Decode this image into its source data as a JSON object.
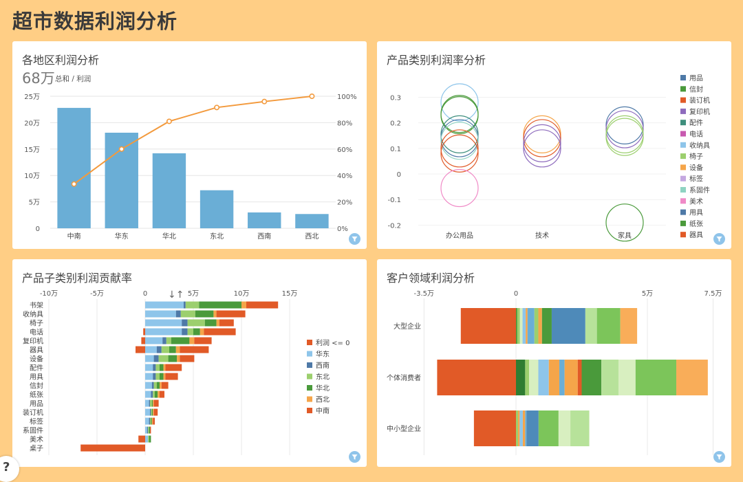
{
  "page_title": "超市数据利润分析",
  "colors": {
    "background": "#FFCE85",
    "bar_blue": "#6aaed6",
    "line_orange": "#f39a3d"
  },
  "icons": {
    "filter": "funnel-icon",
    "sort": "sort-icon",
    "help": "help-icon"
  },
  "panels": {
    "region": {
      "title": "各地区利润分析",
      "big_number": "68万",
      "big_number_sub": "总和 / 利润"
    },
    "category": {
      "title": "产品类别利润率分析"
    },
    "subcategory": {
      "title": "产品子类别利润贡献率",
      "sort_symbol": "↓↑"
    },
    "segment": {
      "title": "客户领域利润分析"
    }
  },
  "help_label": "?",
  "chart_data": [
    {
      "id": "region",
      "type": "bar",
      "categories": [
        "中南",
        "华东",
        "华北",
        "东北",
        "西南",
        "西北"
      ],
      "values": [
        228000,
        181000,
        142000,
        72000,
        30000,
        27000
      ],
      "cumulative_percent": [
        33.5,
        60.0,
        81.0,
        91.5,
        96.0,
        100.0
      ],
      "ylim": [
        0,
        250000
      ],
      "y_ticks": [
        "0",
        "5万",
        "10万",
        "15万",
        "20万",
        "25万"
      ],
      "y2_ticks": [
        "0%",
        "20%",
        "40%",
        "60%",
        "80%",
        "100%"
      ],
      "grid": true
    },
    {
      "id": "category",
      "type": "scatter",
      "categories": [
        "办公用品",
        "技术",
        "家具"
      ],
      "ylim": [
        -0.25,
        0.32
      ],
      "y_ticks": [
        "0.3",
        "0.2",
        "0.1",
        "0",
        "-0.1",
        "-0.2"
      ],
      "legend_position": "right",
      "legend": [
        {
          "name": "用品",
          "color": "#4e79a7"
        },
        {
          "name": "信封",
          "color": "#4a9a3b"
        },
        {
          "name": "装订机",
          "color": "#e15a27"
        },
        {
          "name": "复印机",
          "color": "#8e6bbd"
        },
        {
          "name": "配件",
          "color": "#3f8f7d"
        },
        {
          "name": "电话",
          "color": "#c85ab0"
        },
        {
          "name": "收纳具",
          "color": "#8ec5ea"
        },
        {
          "name": "椅子",
          "color": "#9ccf6e"
        },
        {
          "name": "设备",
          "color": "#f5a54a"
        },
        {
          "name": "标签",
          "color": "#c4a8e0"
        },
        {
          "name": "系固件",
          "color": "#8fd3c2"
        },
        {
          "name": "美术",
          "color": "#f08ac7"
        },
        {
          "name": "用具",
          "color": "#4e79a7"
        },
        {
          "name": "纸张",
          "color": "#4a9a3b"
        },
        {
          "name": "器具",
          "color": "#e15a27"
        }
      ],
      "points": [
        {
          "category": "办公用品",
          "y": 0.28,
          "color": "#8ec5ea"
        },
        {
          "category": "办公用品",
          "y": 0.235,
          "color": "#4a9a3b"
        },
        {
          "category": "办公用品",
          "y": 0.23,
          "color": "#4a9a3b"
        },
        {
          "category": "办公用品",
          "y": 0.155,
          "color": "#3f8f7d"
        },
        {
          "category": "办公用品",
          "y": 0.14,
          "color": "#4e79a7"
        },
        {
          "category": "办公用品",
          "y": 0.13,
          "color": "#8fd3c2"
        },
        {
          "category": "办公用品",
          "y": 0.1,
          "color": "#e15a27"
        },
        {
          "category": "办公用品",
          "y": 0.08,
          "color": "#e15a27"
        },
        {
          "category": "办公用品",
          "y": -0.055,
          "color": "#f08ac7"
        },
        {
          "category": "技术",
          "y": 0.155,
          "color": "#f5a54a"
        },
        {
          "category": "技术",
          "y": 0.14,
          "color": "#e15a27"
        },
        {
          "category": "技术",
          "y": 0.12,
          "color": "#8e6bbd"
        },
        {
          "category": "技术",
          "y": 0.1,
          "color": "#8e6bbd"
        },
        {
          "category": "家具",
          "y": 0.19,
          "color": "#4e79a7"
        },
        {
          "category": "家具",
          "y": 0.175,
          "color": "#8e6bbd"
        },
        {
          "category": "家具",
          "y": 0.155,
          "color": "#9ccf6e"
        },
        {
          "category": "家具",
          "y": 0.145,
          "color": "#9ccf6e"
        },
        {
          "category": "家具",
          "y": -0.19,
          "color": "#4a9a3b"
        }
      ]
    },
    {
      "id": "subcategory",
      "type": "bar",
      "orientation": "horizontal",
      "categories": [
        "书架",
        "收纳具",
        "椅子",
        "电话",
        "复印机",
        "器具",
        "设备",
        "配件",
        "用具",
        "信封",
        "纸张",
        "用品",
        "装订机",
        "标签",
        "系固件",
        "美术",
        "桌子"
      ],
      "xlim": [
        -100000,
        150000
      ],
      "x_ticks": [
        "-10万",
        "-5万",
        "0",
        "5万",
        "10万",
        "15万"
      ],
      "legend_position": "right",
      "series": [
        {
          "name": "利润 <= 0",
          "color": "#e15a27",
          "values": [
            0,
            0,
            0,
            -2000,
            -4000,
            -10000,
            0,
            0,
            0,
            0,
            0,
            0,
            0,
            0,
            0,
            -7000,
            -67000
          ]
        },
        {
          "name": "华东",
          "color": "#8ec5ea",
          "values": [
            40000,
            32000,
            38000,
            38000,
            18000,
            12000,
            9000,
            8000,
            8000,
            7000,
            6000,
            4000,
            5000,
            4000,
            2000,
            3000,
            0
          ]
        },
        {
          "name": "西南",
          "color": "#4e79a7",
          "values": [
            2000,
            5000,
            6000,
            6000,
            4000,
            5000,
            5000,
            3000,
            3000,
            2000,
            2000,
            1000,
            1000,
            1000,
            1000,
            0,
            0
          ]
        },
        {
          "name": "东北",
          "color": "#9ccf6e",
          "values": [
            14000,
            15000,
            18000,
            6000,
            5000,
            8000,
            10000,
            4000,
            4000,
            3000,
            2000,
            2000,
            1000,
            1000,
            1000,
            1000,
            0
          ]
        },
        {
          "name": "华北",
          "color": "#4a9a3b",
          "values": [
            44000,
            19000,
            12000,
            7000,
            19000,
            7000,
            9000,
            4000,
            4000,
            3000,
            3000,
            1000,
            1000,
            1000,
            1000,
            2000,
            0
          ]
        },
        {
          "name": "西北",
          "color": "#f5a54a",
          "values": [
            5000,
            3000,
            3000,
            4000,
            5000,
            4000,
            3000,
            2000,
            2000,
            2000,
            2000,
            1000,
            1000,
            1000,
            0,
            0,
            0
          ]
        },
        {
          "name": "中南",
          "color": "#e15a27",
          "values": [
            33000,
            30000,
            15000,
            33000,
            18000,
            30000,
            15000,
            17000,
            13000,
            7000,
            5000,
            5000,
            4000,
            2000,
            1000,
            0,
            0
          ]
        }
      ]
    },
    {
      "id": "segment",
      "type": "bar",
      "orientation": "horizontal",
      "categories": [
        "大型企业",
        "个体消费者",
        "中小型企业"
      ],
      "xlim": [
        -35000,
        75000
      ],
      "x_ticks": [
        "-3.5万",
        "0",
        "5万",
        "7.5万"
      ],
      "segments": [
        {
          "category": "大型企业",
          "parts": [
            {
              "value": -21000,
              "color": "#e15a27"
            },
            {
              "value": 500,
              "color": "#4a9a3b"
            },
            {
              "value": 1000,
              "color": "#9ccf6e"
            },
            {
              "value": 1000,
              "color": "#d8efc0"
            },
            {
              "value": 1200,
              "color": "#8ec5ea"
            },
            {
              "value": 700,
              "color": "#f5a54a"
            },
            {
              "value": 2600,
              "color": "#6aaed6"
            },
            {
              "value": 1500,
              "color": "#9ccf6e"
            },
            {
              "value": 1400,
              "color": "#f5a54a"
            },
            {
              "value": 3700,
              "color": "#4a9a3b"
            },
            {
              "value": 12800,
              "color": "#4e8ab9"
            },
            {
              "value": 4400,
              "color": "#b7e29a"
            },
            {
              "value": 8900,
              "color": "#7cc55a"
            },
            {
              "value": 6400,
              "color": "#f9ad59"
            }
          ]
        },
        {
          "category": "个体消费者",
          "parts": [
            {
              "value": -30000,
              "color": "#e15a27"
            },
            {
              "value": 3500,
              "color": "#2f7d32"
            },
            {
              "value": 1500,
              "color": "#9ccf6e"
            },
            {
              "value": 3500,
              "color": "#d8efc0"
            },
            {
              "value": 4000,
              "color": "#8ec5ea"
            },
            {
              "value": 4000,
              "color": "#f5a54a"
            },
            {
              "value": 2000,
              "color": "#6aaed6"
            },
            {
              "value": 5000,
              "color": "#f5a54a"
            },
            {
              "value": 1500,
              "color": "#e15a27"
            },
            {
              "value": 7500,
              "color": "#4a9a3b"
            },
            {
              "value": 6500,
              "color": "#b7e29a"
            },
            {
              "value": 6500,
              "color": "#d8efc0"
            },
            {
              "value": 15500,
              "color": "#7cc55a"
            },
            {
              "value": 12000,
              "color": "#f9ad59"
            }
          ]
        },
        {
          "category": "中小型企业",
          "parts": [
            {
              "value": -16000,
              "color": "#e15a27"
            },
            {
              "value": 800,
              "color": "#9ccf6e"
            },
            {
              "value": 600,
              "color": "#f5a54a"
            },
            {
              "value": 1200,
              "color": "#8ec5ea"
            },
            {
              "value": 900,
              "color": "#f5a54a"
            },
            {
              "value": 500,
              "color": "#6aaed6"
            },
            {
              "value": 4600,
              "color": "#4e8ab9"
            },
            {
              "value": 7600,
              "color": "#7cc55a"
            },
            {
              "value": 4500,
              "color": "#d8efc0"
            },
            {
              "value": 7200,
              "color": "#b7e29a"
            }
          ]
        }
      ]
    }
  ]
}
